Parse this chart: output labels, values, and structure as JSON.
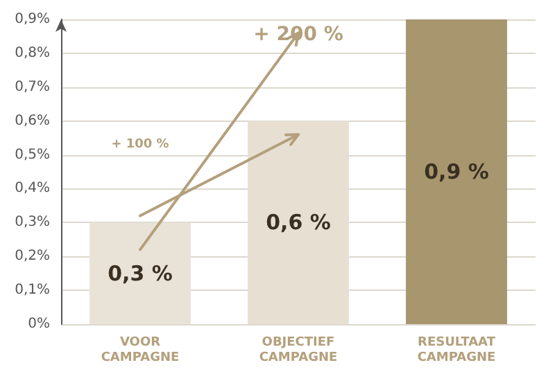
{
  "chart_data": {
    "type": "bar",
    "categories": [
      "VOOR\nCAMPAGNE",
      "OBJECTIEF\nCAMPAGNE",
      "RESULTAAT\nCAMPAGNE"
    ],
    "values": [
      0.3,
      0.6,
      0.9
    ],
    "colors": [
      "#e9e3d7",
      "#e7e0d2",
      "#a8966f"
    ],
    "value_labels": [
      "0,3 %",
      "0,6 %",
      "0,9 %"
    ],
    "ylim": [
      0,
      0.9
    ],
    "yticks": [
      {
        "value": 0,
        "label": "0%"
      },
      {
        "value": 0.1,
        "label": "0,1%"
      },
      {
        "value": 0.2,
        "label": "0,2%"
      },
      {
        "value": 0.3,
        "label": "0,3%"
      },
      {
        "value": 0.4,
        "label": "0,4%"
      },
      {
        "value": 0.5,
        "label": "0,5%"
      },
      {
        "value": 0.6,
        "label": "0,6%"
      },
      {
        "value": 0.7,
        "label": "0,7%"
      },
      {
        "value": 0.8,
        "label": "0,8%"
      },
      {
        "value": 0.9,
        "label": "0,9%"
      }
    ],
    "annotations": [
      "+ 100 %",
      "+ 200 %"
    ],
    "grid": "y"
  }
}
